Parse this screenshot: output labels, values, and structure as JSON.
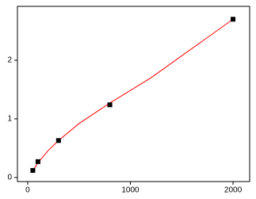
{
  "chart_data": {
    "type": "scatter",
    "series": [
      {
        "color": "#000000",
        "x": [
          50,
          100,
          300,
          800,
          2000
        ],
        "values": [
          0.12,
          0.27,
          0.63,
          1.24,
          2.7
        ]
      },
      {
        "color": "#ff0000",
        "line": true,
        "x": [
          50,
          100,
          200,
          300,
          500,
          800,
          1200,
          1600,
          2000
        ],
        "values": [
          0.12,
          0.25,
          0.46,
          0.63,
          0.92,
          1.27,
          1.7,
          2.2,
          2.7
        ]
      }
    ],
    "xlim": [
      -100,
      2162
    ],
    "ylim": [
      -0.07,
      2.92
    ],
    "xticks": [
      0,
      1000,
      2000
    ],
    "yticks": [
      0,
      1,
      2
    ]
  }
}
